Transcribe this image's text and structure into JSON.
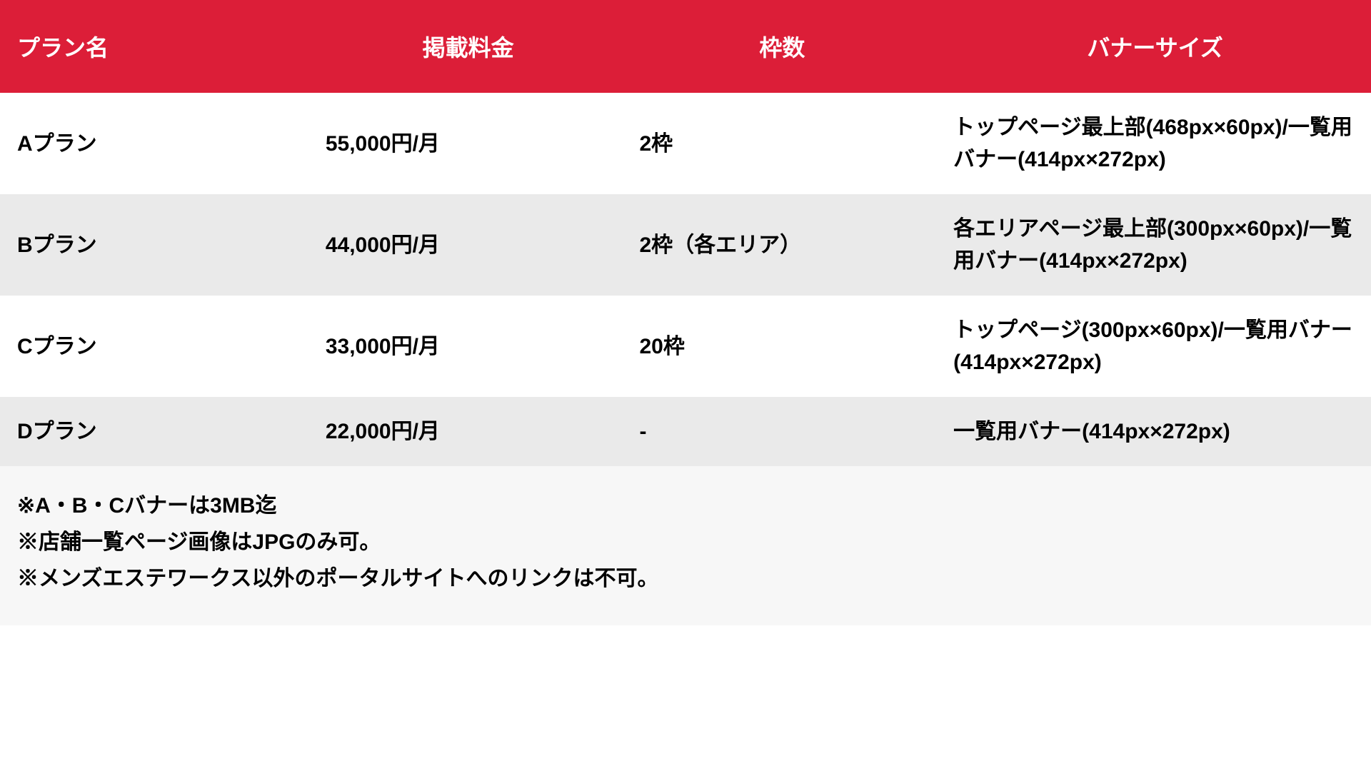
{
  "table": {
    "header_bg": "#dc1e38",
    "header_text_color": "#ffffff",
    "row_bg_odd": "#ffffff",
    "row_bg_even": "#eaeaea",
    "row_text_color": "#000000",
    "footer_bg": "#f7f7f7",
    "footer_text_color": "#000000",
    "columns": [
      "プラン名",
      "掲載料金",
      "枠数",
      "バナーサイズ"
    ],
    "rows": [
      {
        "plan": "Aプラン",
        "price": "55,000円/月",
        "slots": "2枠",
        "banner": "トップページ最上部(468px×60px)/一覧用バナー(414px×272px)"
      },
      {
        "plan": "Bプラン",
        "price": "44,000円/月",
        "slots": "2枠（各エリア）",
        "banner": "各エリアページ最上部(300px×60px)/一覧用バナー(414px×272px)"
      },
      {
        "plan": "Cプラン",
        "price": "33,000円/月",
        "slots": "20枠",
        "banner": "トップページ(300px×60px)/一覧用バナー(414px×272px)"
      },
      {
        "plan": "Dプラン",
        "price": "22,000円/月",
        "slots": "-",
        "banner": "一覧用バナー(414px×272px)"
      }
    ],
    "footer_lines": [
      "※A・B・Cバナーは3MB迄",
      "※店舗一覧ページ画像はJPGのみ可。",
      "※メンズエステワークス以外のポータルサイトへのリンクは不可。"
    ]
  }
}
